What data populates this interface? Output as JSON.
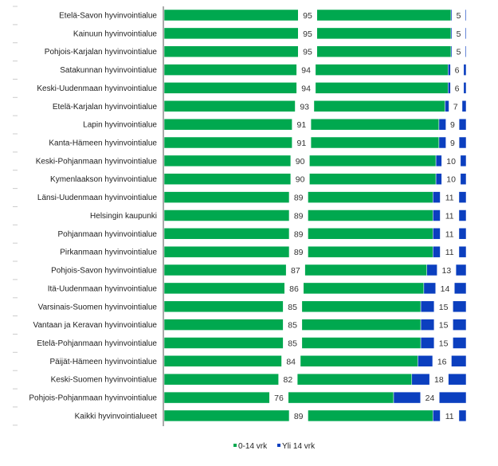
{
  "chart_data": {
    "type": "bar",
    "orientation": "horizontal",
    "stacked": "percent",
    "categories": [
      "Etelä-Savon hyvinvointialue",
      "Kainuun hyvinvointialue",
      "Pohjois-Karjalan hyvinvointialue",
      "Satakunnan hyvinvointialue",
      "Keski-Uudenmaan hyvinvointialue",
      "Etelä-Karjalan hyvinvointialue",
      "Lapin hyvinvointialue",
      "Kanta-Hämeen hyvinvointialue",
      "Keski-Pohjanmaan hyvinvointialue",
      "Kymenlaakson hyvinvointialue",
      "Länsi-Uudenmaan hyvinvointialue",
      "Helsingin kaupunki",
      "Pohjanmaan hyvinvointialue",
      "Pirkanmaan hyvinvointialue",
      "Pohjois-Savon hyvinvointialue",
      "Itä-Uudenmaan hyvinvointialue",
      "Varsinais-Suomen hyvinvointialue",
      "Vantaan ja Keravan hyvinvointialue",
      "Etelä-Pohjanmaan hyvinvointialue",
      "Päijät-Hämeen hyvinvointialue",
      "Keski-Suomen hyvinvointialue",
      "Pohjois-Pohjanmaan hyvinvointialue",
      "Kaikki hyvinvointialueet"
    ],
    "series": [
      {
        "name": "0-14 vrk",
        "color": "#00a84f",
        "values": [
          95,
          95,
          95,
          94,
          94,
          93,
          91,
          91,
          90,
          90,
          89,
          89,
          89,
          89,
          87,
          86,
          85,
          85,
          85,
          84,
          82,
          76,
          89
        ]
      },
      {
        "name": "Yli 14 vrk",
        "color": "#0b3fbf",
        "values": [
          5,
          5,
          5,
          6,
          6,
          7,
          9,
          9,
          10,
          10,
          11,
          11,
          11,
          11,
          13,
          14,
          15,
          15,
          15,
          16,
          18,
          24,
          11
        ]
      }
    ],
    "xlim": [
      0,
      100
    ],
    "grid": false,
    "legend": "bottom"
  }
}
